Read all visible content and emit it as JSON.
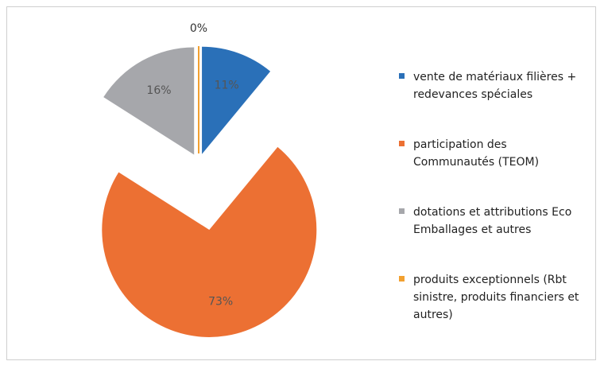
{
  "chart_data": {
    "type": "pie",
    "categories": [
      "vente de matériaux filières + redevances spéciales",
      "participation des Communautés (TEOM)",
      "dotations et attributions Eco Emballages et autres",
      "produits exceptionnels (Rbt sinistre, produits financiers et autres)"
    ],
    "values": [
      11,
      73,
      16,
      0
    ],
    "value_labels": [
      "11%",
      "73%",
      "16%",
      "0%"
    ],
    "colors": [
      "#2a70b8",
      "#ec7033",
      "#a6a7ab",
      "#f2a030"
    ],
    "legend": "right"
  }
}
